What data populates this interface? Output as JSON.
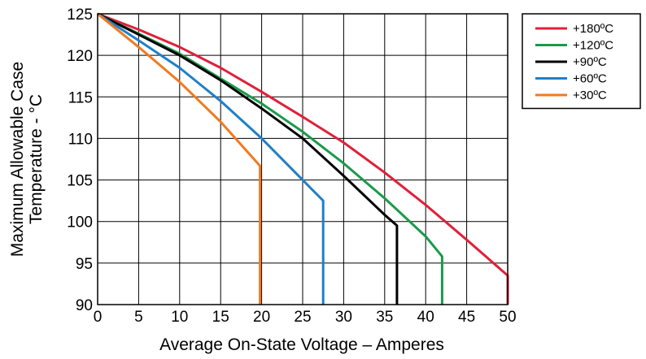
{
  "chart_data": {
    "type": "line",
    "xlabel": "Average On-State Voltage – Amperes",
    "ylabel_lines": [
      "Maximum Allowable Case",
      "Temperature - °C"
    ],
    "xlim": [
      0,
      50
    ],
    "ylim": [
      90,
      125
    ],
    "xticks": [
      "0",
      "5",
      "10",
      "15",
      "20",
      "25",
      "30",
      "35",
      "40",
      "45",
      "50"
    ],
    "yticks": [
      "125",
      "120",
      "115",
      "110",
      "105",
      "100",
      "95",
      "90"
    ],
    "grid": true,
    "legend_position": "top-right",
    "series": [
      {
        "name": "+180ºC",
        "color": "#e0203a",
        "points": [
          [
            0,
            125
          ],
          [
            5,
            123.1
          ],
          [
            10,
            121
          ],
          [
            15,
            118.5
          ],
          [
            20,
            115.6
          ],
          [
            25,
            112.6
          ],
          [
            30,
            109.5
          ],
          [
            35,
            105.9
          ],
          [
            40,
            102
          ],
          [
            45,
            97.8
          ],
          [
            50,
            93.5
          ],
          [
            50,
            90
          ]
        ]
      },
      {
        "name": "+120ºC",
        "color": "#1a9a4a",
        "points": [
          [
            0,
            125
          ],
          [
            5,
            122.6
          ],
          [
            10,
            120.2
          ],
          [
            15,
            117.2
          ],
          [
            20,
            114.2
          ],
          [
            25,
            110.8
          ],
          [
            30,
            107
          ],
          [
            35,
            102.8
          ],
          [
            40,
            98.2
          ],
          [
            42,
            95.8
          ],
          [
            42,
            90
          ]
        ]
      },
      {
        "name": "+90ºC",
        "color": "#000000",
        "points": [
          [
            0,
            125
          ],
          [
            5,
            122.5
          ],
          [
            10,
            120
          ],
          [
            15,
            117
          ],
          [
            20,
            113.6
          ],
          [
            25,
            110
          ],
          [
            30,
            105.5
          ],
          [
            35,
            100.8
          ],
          [
            36.5,
            99.5
          ],
          [
            36.5,
            90
          ]
        ]
      },
      {
        "name": "+60ºC",
        "color": "#1f7fc8",
        "points": [
          [
            0,
            125
          ],
          [
            5,
            121.8
          ],
          [
            10,
            118.5
          ],
          [
            15,
            114.5
          ],
          [
            20,
            110
          ],
          [
            25,
            105
          ],
          [
            27.5,
            102.5
          ],
          [
            27.5,
            90
          ]
        ]
      },
      {
        "name": "+30ºC",
        "color": "#f07a20",
        "points": [
          [
            0,
            125
          ],
          [
            5,
            121
          ],
          [
            10,
            116.8
          ],
          [
            15,
            112
          ],
          [
            19.8,
            106.7
          ],
          [
            19.8,
            90
          ]
        ]
      }
    ]
  }
}
